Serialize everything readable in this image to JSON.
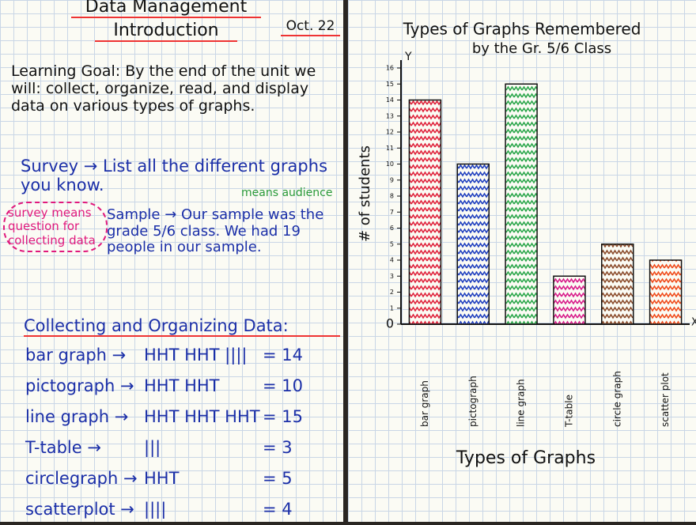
{
  "poster": {
    "title": "Data Management",
    "subtitle": "Introduction",
    "date": "Oct. 22",
    "learning_goal": "Learning Goal: By the end of the unit we will: collect, organize, read, and display data on various types of graphs.",
    "survey": "Survey → List all the different graphs you know.",
    "survey_note": "survey means question for collecting data",
    "sample_note": "means audience",
    "sample": "Sample → Our sample was the grade 5/6 class. We had 19 people in our sample.",
    "collecting_title": "Collecting and Organizing Data:",
    "tally_rows": [
      {
        "label": "bar graph →",
        "tally": "HHT HHT ||||",
        "count": "= 14"
      },
      {
        "label": "pictograph →",
        "tally": "HHT HHT",
        "count": "= 10"
      },
      {
        "label": "line graph →",
        "tally": "HHT HHT HHT",
        "count": "= 15"
      },
      {
        "label": "T-table →",
        "tally": "|||",
        "count": "= 3"
      },
      {
        "label": "circlegraph →",
        "tally": "HHT",
        "count": "= 5"
      },
      {
        "label": "scatterplot →",
        "tally": "||||",
        "count": "= 4"
      }
    ]
  },
  "chart_data": {
    "type": "bar",
    "title": "Types of Graphs Remembered",
    "subtitle": "by the Gr. 5/6 Class",
    "x_label": "Types of Graphs",
    "y_label": "# of students",
    "x_axis_letter": "X",
    "y_axis_letter": "Y",
    "categories": [
      "bar graph",
      "pictograph",
      "line graph",
      "T-table",
      "circle graph",
      "scatter plot"
    ],
    "values": [
      14,
      10,
      15,
      3,
      5,
      4
    ],
    "colors": [
      "#e0203a",
      "#1f3fbf",
      "#2aa64a",
      "#d81b8a",
      "#8a4a2a",
      "#f04a1a"
    ],
    "ylim": [
      0,
      16
    ],
    "yticks": [
      0,
      1,
      2,
      3,
      4,
      5,
      6,
      7,
      8,
      9,
      10,
      11,
      12,
      13,
      14,
      15,
      16
    ],
    "grid": false
  }
}
